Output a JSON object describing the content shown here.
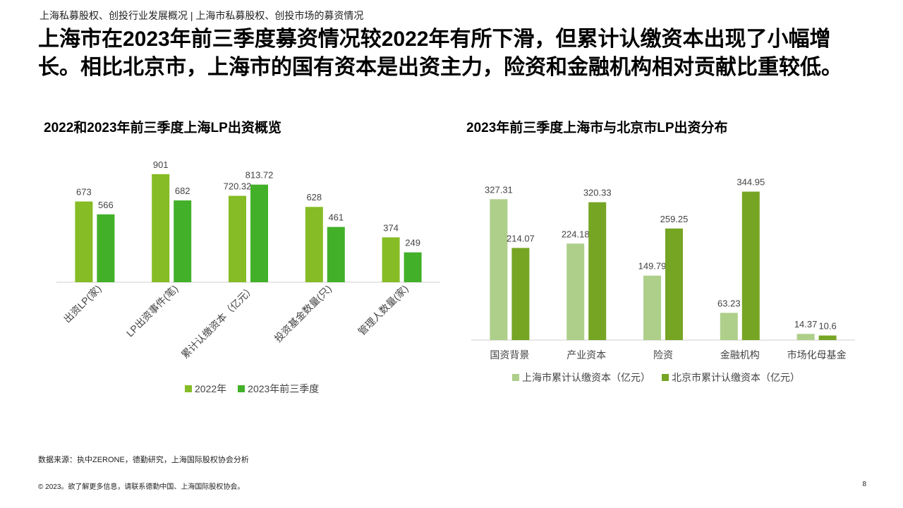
{
  "breadcrumb": "上海私募股权、创投行业发展概况 | 上海市私募股权、创投市场的募资情况",
  "headline": "上海市在2023年前三季度募资情况较2022年有所下滑，但累计认缴资本出现了小幅增长。相比北京市，上海市的国有资本是出资主力，险资和金融机构相对贡献比重较低。",
  "colors": {
    "left_2022": "#86bc25",
    "left_2023": "#43b02a",
    "right_shanghai": "#aecf8a",
    "right_beijing": "#76a524"
  },
  "chart_data": [
    {
      "type": "bar",
      "title": "2022和2023年前三季度上海LP出资概览",
      "categories": [
        "出资LP(家)",
        "LP出资事件(笔)",
        "累计认缴资本（亿元）",
        "投资基金数量(只)",
        "管理人数量(家)"
      ],
      "series": [
        {
          "name": "2022年",
          "values": [
            673,
            901,
            720.32,
            628,
            374
          ],
          "labels": [
            "673",
            "901",
            "720.32",
            "628",
            "374"
          ]
        },
        {
          "name": "2023年前三季度",
          "values": [
            566,
            682,
            813.72,
            461,
            249
          ],
          "labels": [
            "566",
            "682",
            "813.72",
            "461",
            "249"
          ]
        }
      ],
      "ylim": [
        0,
        1000
      ],
      "grid": false,
      "legend": "bottom"
    },
    {
      "type": "bar",
      "title": "2023年前三季度上海市与北京市LP出资分布",
      "categories": [
        "国资背景",
        "产业资本",
        "险资",
        "金融机构",
        "市场化母基金"
      ],
      "series": [
        {
          "name": "上海市累计认缴资本（亿元）",
          "values": [
            327.31,
            224.18,
            149.79,
            63.23,
            14.37
          ],
          "labels": [
            "327.31",
            "224.18",
            "149.79",
            "63.23",
            "14.37"
          ]
        },
        {
          "name": "北京市累计认缴资本（亿元）",
          "values": [
            214.07,
            320.33,
            259.25,
            344.95,
            10.6
          ],
          "labels": [
            "214.07",
            "320.33",
            "259.25",
            "344.95",
            "10.6"
          ]
        }
      ],
      "ylim": [
        0,
        400
      ],
      "grid": false,
      "legend": "bottom"
    }
  ],
  "source": "数据来源：执中ZERONE，德勤研究，上海国际股权协会分析",
  "footer": "© 2023。欲了解更多信息，请联系德勤中国、上海国际股权协会。",
  "page_number": "8"
}
